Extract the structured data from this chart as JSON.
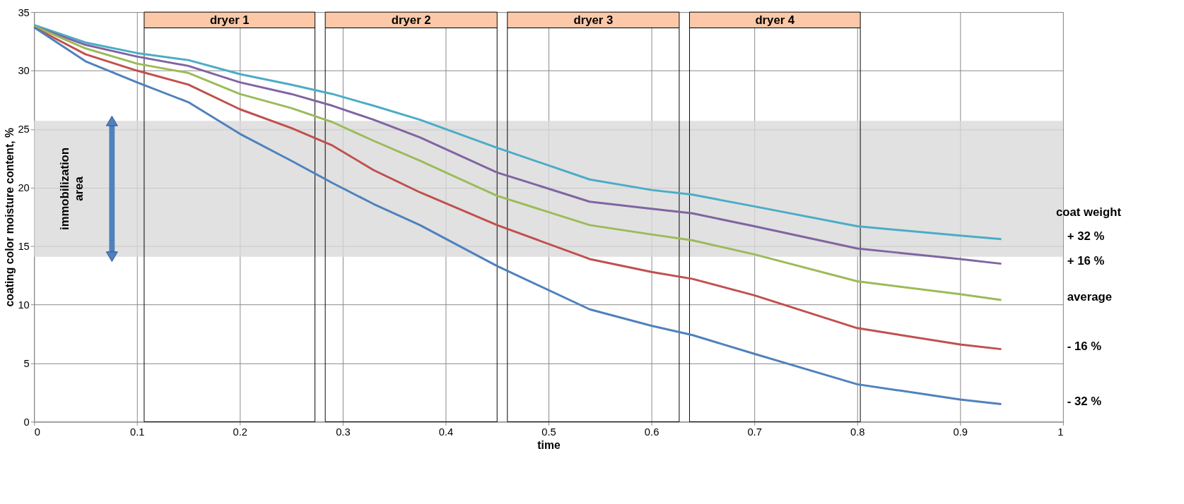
{
  "chart_data": {
    "type": "line",
    "xlabel": "time",
    "ylabel": "coating color moisture content, %",
    "legend_title": "coat weight",
    "x": [
      0,
      0.05,
      0.1,
      0.15,
      0.2,
      0.25,
      0.29,
      0.33,
      0.375,
      0.45,
      0.54,
      0.6,
      0.64,
      0.7,
      0.8,
      0.9,
      0.94
    ],
    "series": [
      {
        "name": "+ 32 %",
        "color": "#4bacc6",
        "values": [
          33.9,
          32.4,
          31.5,
          30.9,
          29.7,
          28.8,
          28.0,
          27.0,
          25.8,
          23.4,
          20.7,
          19.8,
          19.4,
          18.4,
          16.7,
          15.9,
          15.6
        ]
      },
      {
        "name": "+ 16 %",
        "color": "#8064a2",
        "values": [
          33.8,
          32.2,
          31.2,
          30.4,
          29.0,
          28.0,
          27.0,
          25.8,
          24.3,
          21.3,
          18.8,
          18.2,
          17.8,
          16.7,
          14.8,
          13.9,
          13.5
        ]
      },
      {
        "name": "average",
        "color": "#9bbb59",
        "values": [
          33.8,
          31.9,
          30.6,
          29.8,
          28.0,
          26.8,
          25.6,
          24.0,
          22.3,
          19.3,
          16.8,
          16.0,
          15.5,
          14.3,
          12.0,
          10.9,
          10.4
        ]
      },
      {
        "name": "- 16 %",
        "color": "#c0504d",
        "values": [
          33.7,
          31.4,
          30.0,
          28.8,
          26.7,
          25.1,
          23.6,
          21.5,
          19.6,
          16.8,
          13.9,
          12.8,
          12.2,
          10.8,
          8.0,
          6.6,
          6.2
        ]
      },
      {
        "name": "- 32 %",
        "color": "#4f81bd",
        "values": [
          33.7,
          30.8,
          29.0,
          27.3,
          24.6,
          22.3,
          20.4,
          18.6,
          16.8,
          13.3,
          9.6,
          8.2,
          7.4,
          5.8,
          3.2,
          1.9,
          1.5
        ]
      }
    ],
    "bands": [
      {
        "axis": "y",
        "from": 14.1,
        "to": 25.7,
        "label": "immobilization area",
        "color": "#d9d9d9"
      },
      {
        "axis": "x",
        "from": 0.107,
        "to": 0.273,
        "label": "dryer 1"
      },
      {
        "axis": "x",
        "from": 0.283,
        "to": 0.45,
        "label": "dryer 2"
      },
      {
        "axis": "x",
        "from": 0.46,
        "to": 0.627,
        "label": "dryer 3"
      },
      {
        "axis": "x",
        "from": 0.637,
        "to": 0.803,
        "label": "dryer 4"
      }
    ],
    "xlim": [
      0,
      1
    ],
    "xticks": [
      0,
      0.1,
      0.2,
      0.3,
      0.4,
      0.5,
      0.6,
      0.7,
      0.8,
      0.9,
      1
    ],
    "ylim": [
      0,
      35
    ],
    "yticks": [
      0,
      5,
      10,
      15,
      20,
      25,
      30,
      35
    ],
    "grid": true,
    "legend": "right",
    "marker": "none",
    "line_style": "solid"
  }
}
